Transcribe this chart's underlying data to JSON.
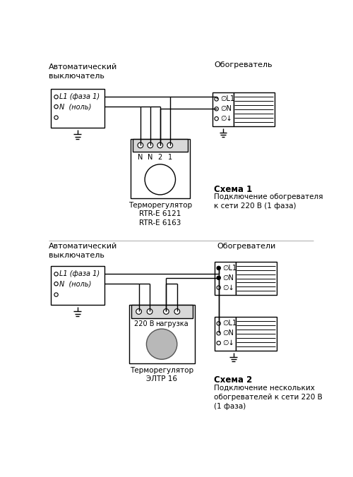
{
  "bg_color": "#ffffff",
  "fig_width": 5.0,
  "fig_height": 6.76,
  "dpi": 100,
  "s1": {
    "title_auto": "Автоматический\nвыключатель",
    "title_obo": "Обогреватель",
    "title_termo": "Терморегулятор\nRTR-E 6121\nRTR-E 6163",
    "schema_label": "Схема 1",
    "schema_desc": "Подключение обогревателя\nк сети 220 В (1 фаза)",
    "lbl_L1": "L1 (фаза 1)",
    "lbl_N": "N  (ноль)"
  },
  "s2": {
    "title_auto": "Автоматический\nвыключатель",
    "title_obo": "Обогреватели",
    "title_termo": "Терморегулятор\nЭЛТР 16",
    "schema_label": "Схема 2",
    "schema_desc": "Подключение нескольких\nобогревателей к сети 220 В\n(1 фаза)",
    "lbl_L1": "L1 (фаза 1)",
    "lbl_N": "N  (ноль)"
  },
  "termo1_labels": [
    "N",
    "N",
    "2",
    "1"
  ],
  "termo2_label1": "220 В",
  "termo2_label2": "нагрузка"
}
